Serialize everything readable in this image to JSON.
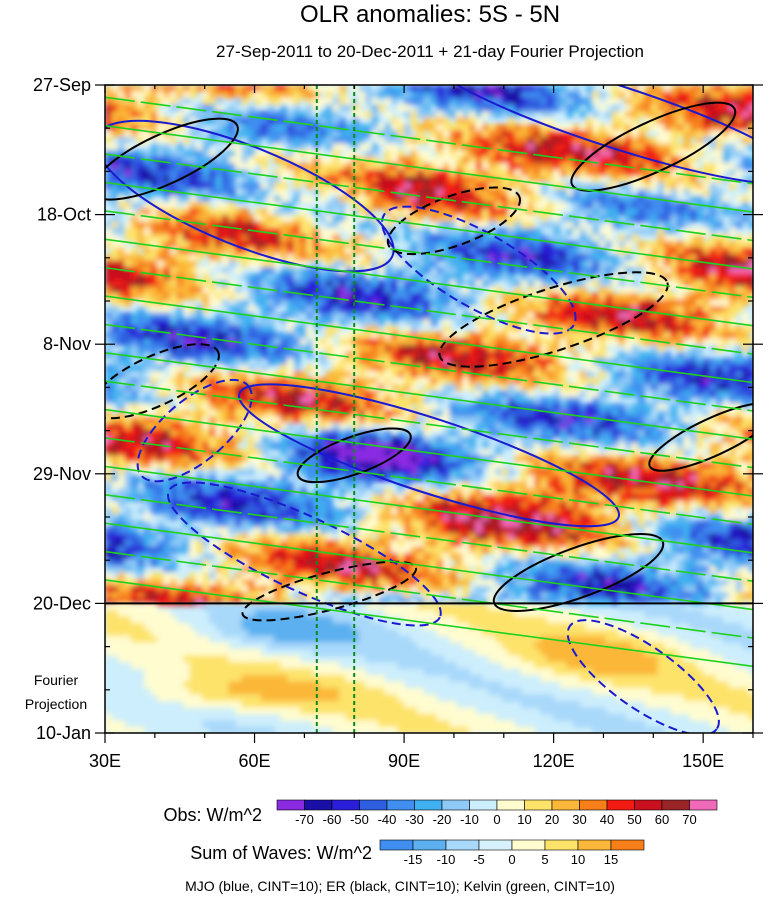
{
  "chart_data": {
    "type": "heatmap",
    "title": "OLR anomalies: 5S - 5N",
    "subtitle": "27-Sep-2011 to 20-Dec-2011 + 21-day Fourier Projection",
    "x_axis": {
      "range": [
        30,
        160
      ],
      "ticks": [
        {
          "value": 30,
          "label": "30E"
        },
        {
          "value": 60,
          "label": "60E"
        },
        {
          "value": 90,
          "label": "90E"
        },
        {
          "value": 120,
          "label": "120E"
        },
        {
          "value": 150,
          "label": "150E"
        }
      ]
    },
    "y_axis": {
      "range_days": [
        0,
        105
      ],
      "ticks": [
        {
          "day": 0,
          "label": "27-Sep"
        },
        {
          "day": 21,
          "label": "18-Oct"
        },
        {
          "day": 42,
          "label": "8-Nov"
        },
        {
          "day": 63,
          "label": "29-Nov"
        },
        {
          "day": 84,
          "label": "20-Dec"
        },
        {
          "day": 105,
          "label": "10-Jan"
        }
      ]
    },
    "projection_start_day": 84,
    "projection_label": [
      "Fourier",
      "Projection"
    ],
    "reference_lines_lon": [
      72.5,
      80
    ],
    "obs_colorbar": {
      "label": "Obs: W/m^2",
      "levels": [
        "-70",
        "-60",
        "-50",
        "-40",
        "-30",
        "-20",
        "-10",
        "0",
        "10",
        "20",
        "30",
        "40",
        "50",
        "60",
        "70"
      ],
      "colors": [
        "#8a2be2",
        "#1a0fa6",
        "#2a1ed8",
        "#2f5fe0",
        "#3f8ef0",
        "#3fb0f0",
        "#8fcaf6",
        "#cdeefc",
        "#fffcd0",
        "#fde36a",
        "#fbb739",
        "#f77f1a",
        "#f21b12",
        "#c8101e",
        "#982428",
        "#f06ab8"
      ]
    },
    "waves_colorbar": {
      "label": "Sum of Waves: W/m^2",
      "levels": [
        "-15",
        "-10",
        "-5",
        "0",
        "5",
        "10",
        "15"
      ],
      "colors": [
        "#3f8ef0",
        "#5cb0f0",
        "#a8d8fa",
        "#d8f2fd",
        "#fffcd0",
        "#fde36a",
        "#fbb739",
        "#f77f1a"
      ]
    },
    "footer": "MJO (blue, CINT=10); ER (black, CINT=10); Kelvin (green, CINT=10)",
    "wave_series": [
      {
        "name": "MJO",
        "color": "#1a1ad0"
      },
      {
        "name": "ER",
        "color": "#000000"
      },
      {
        "name": "Kelvin",
        "color": "#1fd11f"
      }
    ]
  }
}
